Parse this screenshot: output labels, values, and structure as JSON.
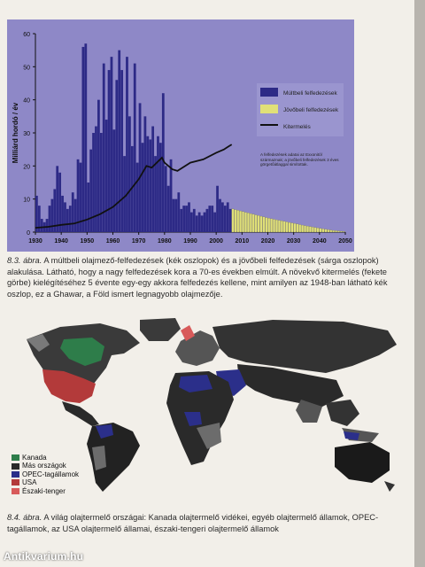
{
  "chart_data": {
    "type": "bar",
    "title": "",
    "ylabel": "Milliárd hordó / év",
    "xlabel": "",
    "x_ticks": [
      "1930",
      "1940",
      "1950",
      "1960",
      "1970",
      "1980",
      "1990",
      "2000",
      "2010",
      "2020",
      "2030",
      "2040",
      "2050"
    ],
    "y_ticks": [
      "0",
      "10",
      "20",
      "30",
      "40",
      "50",
      "60"
    ],
    "ylim": [
      0,
      60
    ],
    "xlim": [
      1930,
      2050
    ],
    "grid": false,
    "legend_position": "top-right",
    "legend": [
      "Múltbeli felfedezések",
      "Jövőbeli felfedezések",
      "Kitermelés"
    ],
    "colors": {
      "background": "#8e88c7",
      "bars": "#2d2a86",
      "future": "#e0e078",
      "line": "#111111"
    },
    "annotation": "A felfedezések adatai az Exxonitól származnak; a jövőbeli felfedezések 3 éves görgetőátlaggal simítottak.",
    "series": [
      {
        "name": "Múltbeli felfedezések",
        "x": [
          1930,
          1931,
          1932,
          1933,
          1934,
          1935,
          1936,
          1937,
          1938,
          1939,
          1940,
          1941,
          1942,
          1943,
          1944,
          1945,
          1946,
          1947,
          1948,
          1949,
          1950,
          1951,
          1952,
          1953,
          1954,
          1955,
          1956,
          1957,
          1958,
          1959,
          1960,
          1961,
          1962,
          1963,
          1964,
          1965,
          1966,
          1967,
          1968,
          1969,
          1970,
          1971,
          1972,
          1973,
          1974,
          1975,
          1976,
          1977,
          1978,
          1979,
          1980,
          1981,
          1982,
          1983,
          1984,
          1985,
          1986,
          1987,
          1988,
          1989,
          1990,
          1991,
          1992,
          1993,
          1994,
          1995,
          1996,
          1997,
          1998,
          1999,
          2000,
          2001,
          2002,
          2003,
          2004,
          2005
        ],
        "values": [
          11,
          8,
          4,
          3,
          4,
          8,
          10,
          13,
          20,
          18,
          11,
          9,
          7,
          8,
          12,
          10,
          22,
          21,
          56,
          57,
          15,
          25,
          30,
          32,
          40,
          30,
          51,
          34,
          49,
          53,
          31,
          46,
          55,
          49,
          23,
          53,
          35,
          26,
          51,
          21,
          39,
          27,
          35,
          29,
          28,
          32,
          23,
          29,
          27,
          42,
          20,
          14,
          22,
          10,
          10,
          12,
          7,
          8,
          8,
          9,
          6,
          7,
          5,
          6,
          5,
          6,
          7,
          8,
          8,
          6,
          14,
          10,
          9,
          8,
          9,
          7
        ]
      },
      {
        "name": "Jövőbeli felfedezések",
        "x": [
          2006,
          2010,
          2015,
          2020,
          2025,
          2030,
          2035,
          2040,
          2045,
          2050
        ],
        "values": [
          7,
          6.2,
          5.2,
          4.2,
          3.4,
          2.6,
          1.8,
          1.1,
          0.5,
          0.1
        ]
      },
      {
        "name": "Kitermelés",
        "x": [
          1930,
          1935,
          1940,
          1945,
          1950,
          1955,
          1960,
          1965,
          1970,
          1973,
          1975,
          1979,
          1980,
          1983,
          1985,
          1990,
          1995,
          2000,
          2003,
          2005,
          2006
        ],
        "values": [
          1.3,
          1.6,
          2.2,
          2.6,
          3.8,
          5.4,
          7.6,
          11,
          16,
          20,
          19.5,
          22.5,
          21,
          19,
          18.5,
          21,
          22,
          24,
          25,
          26,
          26.5
        ]
      }
    ]
  },
  "caption1": {
    "label": "8.3. ábra.",
    "text": " A múltbeli olajmező-felfedezések (kék oszlopok) és a jövőbeli felfedezések (sárga oszlopok) alakulása. Látható, hogy a nagy felfedezések kora a 70-es években elmúlt. A növekvő kitermelés (fekete görbe) kielégítéséhez 5 évente egy-egy akkora felfedezés kellene, mint amilyen az 1948-ban látható kék oszlop, ez a Ghawar, a Föld ismert legnagyobb olajmezője."
  },
  "map_legend": [
    {
      "label": "Kanada",
      "color": "#2e7d4a"
    },
    {
      "label": "Más országok",
      "color": "#2a2a2a"
    },
    {
      "label": "OPEC-tagállamok",
      "color": "#2b2f8a"
    },
    {
      "label": "USA",
      "color": "#b33a3a"
    },
    {
      "label": "Északi-tenger",
      "color": "#d85a5a"
    }
  ],
  "caption2": {
    "label": "8.4. ábra.",
    "text": " A világ olajtermelő országai: Kanada olajtermelő vidékei, egyéb olajtermelő államok, OPEC-tagállamok, az USA olajtermelő államai, északi-tengeri olajtermelő államok"
  },
  "watermark": "Antikvarium.hu"
}
